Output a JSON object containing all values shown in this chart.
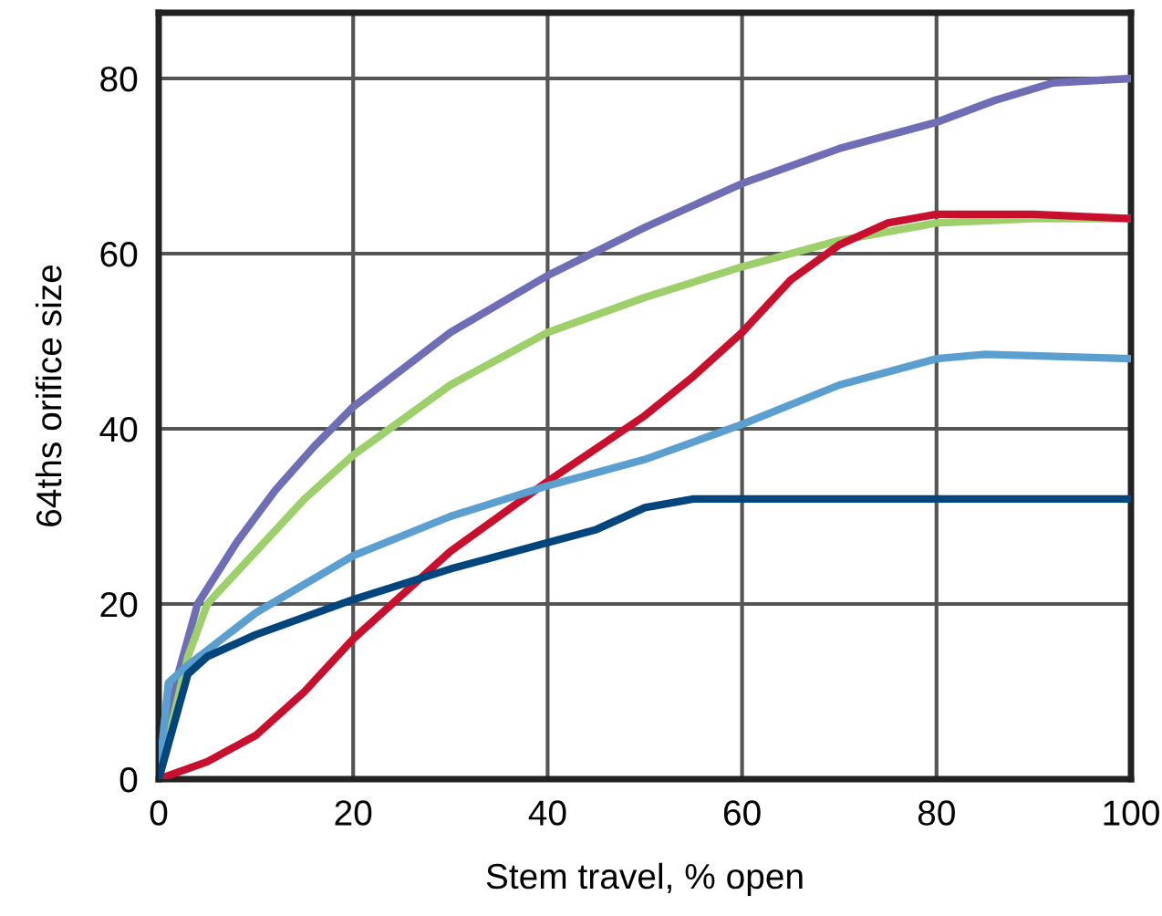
{
  "chart_data": {
    "type": "line",
    "xlabel": "Stem travel, % open",
    "ylabel": "64ths orifice size",
    "xlim": [
      0,
      100
    ],
    "ylim": [
      0,
      87.5
    ],
    "xticks": [
      0,
      20,
      40,
      60,
      80,
      100
    ],
    "yticks": [
      0,
      20,
      40,
      60,
      80
    ],
    "grid": true,
    "legend": false,
    "marker": "none",
    "line_style": "solid",
    "series": [
      {
        "color": "#6f6db5",
        "x": [
          0,
          2,
          4,
          8,
          12,
          16,
          20,
          30,
          40,
          50,
          60,
          70,
          80,
          86,
          92,
          100
        ],
        "values": [
          0,
          12,
          20,
          27,
          33,
          38,
          42.5,
          51,
          57.5,
          63,
          68,
          72,
          75,
          77.5,
          79.5,
          80
        ]
      },
      {
        "color": "#9dcf6a",
        "x": [
          0,
          3,
          5,
          10,
          15,
          20,
          30,
          40,
          50,
          60,
          70,
          80,
          90,
          100
        ],
        "values": [
          0,
          14,
          20,
          26,
          32,
          37,
          45,
          51,
          55,
          58.5,
          61.5,
          63.5,
          64,
          64
        ]
      },
      {
        "color": "#c8102e",
        "x": [
          0,
          5,
          10,
          15,
          20,
          30,
          40,
          50,
          55,
          60,
          65,
          70,
          75,
          80,
          90,
          100
        ],
        "values": [
          0,
          2,
          5,
          10,
          16,
          26,
          34,
          41.5,
          46,
          51,
          57,
          61,
          63.5,
          64.5,
          64.5,
          64
        ]
      },
      {
        "color": "#5a9fcf",
        "x": [
          0,
          1,
          3,
          10,
          20,
          30,
          40,
          50,
          60,
          70,
          80,
          85,
          100
        ],
        "values": [
          0,
          11,
          13,
          19,
          25.5,
          30,
          33.5,
          36.5,
          40.5,
          45,
          48,
          48.5,
          48
        ]
      },
      {
        "color": "#00457c",
        "x": [
          0,
          3,
          5,
          10,
          20,
          30,
          40,
          45,
          50,
          55,
          100
        ],
        "values": [
          0,
          12,
          14,
          16.5,
          20.5,
          24,
          27,
          28.5,
          31,
          32,
          32
        ]
      }
    ]
  }
}
